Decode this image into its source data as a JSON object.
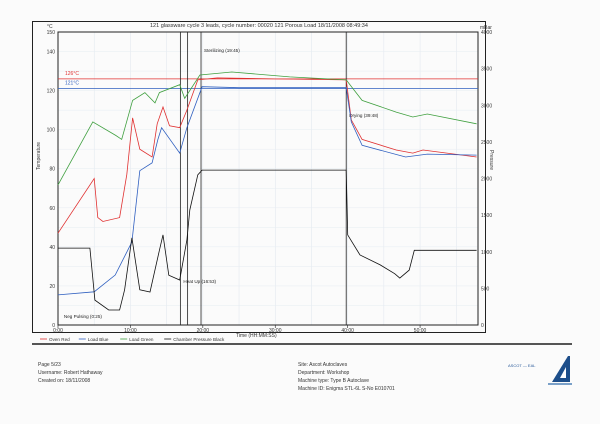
{
  "chart_data": {
    "type": "line",
    "title": "121 glassware cycle 3 leads, cycle number: 00020 121 Porous Load  18/11/2008 08:49:34",
    "xlabel": "Time (HH:MM:SS)",
    "ylabel": "Temperature",
    "y2label": "Pressure",
    "y_unit": "°C",
    "y2_unit": "mBar",
    "xlim": [
      0,
      58
    ],
    "ylim": [
      0,
      150
    ],
    "y2lim": [
      0,
      4000
    ],
    "x_ticks": [
      {
        "v": 0,
        "label": "0:00"
      },
      {
        "v": 10,
        "label": "10:00"
      },
      {
        "v": 20,
        "label": "20:00"
      },
      {
        "v": 30,
        "label": "30:00"
      },
      {
        "v": 40,
        "label": "40:00"
      },
      {
        "v": 50,
        "label": "50:00"
      }
    ],
    "y_ticks": [
      {
        "v": 0,
        "label": "0"
      },
      {
        "v": 20,
        "label": "20"
      },
      {
        "v": 40,
        "label": "40"
      },
      {
        "v": 60,
        "label": "60"
      },
      {
        "v": 80,
        "label": "80"
      },
      {
        "v": 100,
        "label": "100"
      },
      {
        "v": 120,
        "label": "120"
      },
      {
        "v": 140,
        "label": "140"
      },
      {
        "v": 150,
        "label": "150"
      }
    ],
    "y2_ticks": [
      {
        "v": 0,
        "label": "0"
      },
      {
        "v": 500,
        "label": "500"
      },
      {
        "v": 1000,
        "label": "1000"
      },
      {
        "v": 1500,
        "label": "1500"
      },
      {
        "v": 2000,
        "label": "2000"
      },
      {
        "v": 2500,
        "label": "2500"
      },
      {
        "v": 3000,
        "label": "3000"
      },
      {
        "v": 3500,
        "label": "3500"
      },
      {
        "v": 4000,
        "label": "4000"
      }
    ],
    "grid": true,
    "legend_position": "bottom-left",
    "reference_lines": [
      {
        "value": 126,
        "label": "126°C",
        "color": "#e03030"
      },
      {
        "value": 121,
        "label": "121°C",
        "color": "#3060c0"
      }
    ],
    "phase_markers": [
      {
        "x": 0.4,
        "label": "Neg Pulsing (0:25)",
        "show_line": false
      },
      {
        "x": 16.9,
        "label": "Heat Up (16:53)",
        "show_line": true
      },
      {
        "x": 17.9,
        "label": "",
        "show_line": true
      },
      {
        "x": 19.75,
        "label": "Sterilizing (19:45)",
        "show_line": true
      },
      {
        "x": 39.8,
        "label": "Drying (39:48)",
        "show_line": true
      }
    ],
    "series": [
      {
        "name": "Oven Red",
        "axis": "left",
        "color": "#e03030",
        "x": [
          0,
          5,
          5.5,
          6.2,
          8.5,
          9.5,
          10.3,
          11.3,
          13,
          13.7,
          14.5,
          15.4,
          16.8,
          17.8,
          19.3,
          22,
          30,
          39.8,
          40.5,
          42,
          46.7,
          49,
          50.4,
          57.8
        ],
        "y": [
          47,
          75,
          55,
          53,
          55,
          77,
          106,
          90,
          86,
          103,
          111.6,
          102,
          101,
          110,
          125.5,
          126.5,
          126,
          125.5,
          105,
          95,
          89.6,
          88,
          89.6,
          86
        ]
      },
      {
        "name": "Load Blue",
        "axis": "left",
        "color": "#3060c0",
        "x": [
          0,
          5,
          7.9,
          10.2,
          11.3,
          13,
          13.8,
          14.3,
          16.8,
          17.8,
          19.9,
          25,
          39.8,
          40.5,
          42,
          48,
          51,
          57.8
        ],
        "y": [
          15.4,
          17,
          25.6,
          42.5,
          79,
          83,
          95,
          101,
          88,
          101,
          122,
          121.5,
          121.5,
          104,
          92,
          86,
          87.5,
          87
        ]
      },
      {
        "name": "Load Green",
        "axis": "left",
        "color": "#40a040",
        "x": [
          0,
          4.8,
          8,
          8.8,
          10.3,
          12,
          13.4,
          14,
          16.8,
          17.5,
          19.6,
          24,
          32,
          39.8,
          42,
          46.7,
          49,
          51,
          57.8
        ],
        "y": [
          71.7,
          104,
          97,
          95,
          115,
          119,
          113.7,
          119,
          123,
          116,
          128,
          129.5,
          127,
          125.5,
          115,
          109,
          106.5,
          108,
          103
        ]
      },
      {
        "name": "Chamber Pressure Black",
        "axis": "right",
        "color": "#111111",
        "x": [
          0,
          4.4,
          5.1,
          7,
          8.5,
          9.2,
          10.2,
          11.3,
          12.7,
          14,
          14.5,
          14.9,
          15.3,
          16.8,
          17.8,
          18.2,
          19.3,
          19.9,
          39.8,
          40,
          41.7,
          44.5,
          46.5,
          47.2,
          48.5,
          49.2,
          57.8
        ],
        "y": [
          1050,
          1050,
          340,
          205,
          205,
          480,
          1190,
          480,
          450,
          1020,
          1230,
          955,
          680,
          615,
          1160,
          1570,
          2050,
          2115,
          2115,
          1230,
          955,
          820,
          700,
          640,
          750,
          1020,
          1020
        ]
      }
    ]
  },
  "footer": {
    "page": "Page 5/23",
    "username": "Username: Robert Hathaway",
    "created": "Created on: 18/11/2008",
    "site": "Site: Ascot Autoclaves",
    "department": "Department: Workshop",
    "machine_type": "Machine type: Type B Autoclave",
    "machine_id": "Machine ID: Enigma STL-6L S-No E010701",
    "logo_text": "ASCOT ― EAL"
  }
}
